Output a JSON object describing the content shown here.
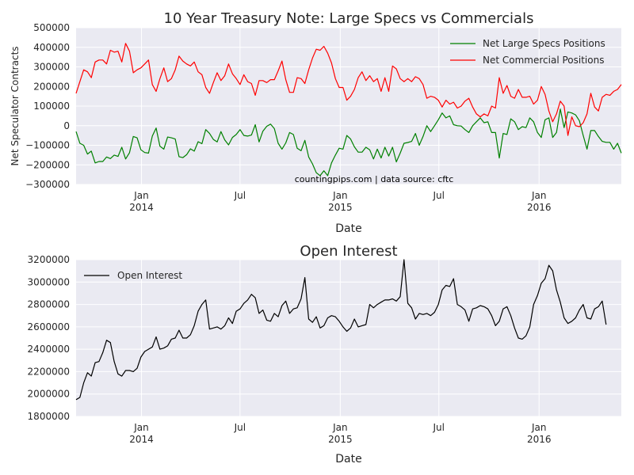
{
  "chart_data": [
    {
      "type": "line",
      "title": "10 Year Treasury Note: Large Specs vs Commercials",
      "xlabel": "Date",
      "ylabel": "Net Speculator Contracts",
      "ylim": [
        -300000,
        500000
      ],
      "y_ticks": [
        500000,
        400000,
        300000,
        200000,
        100000,
        0,
        -100000,
        -200000,
        -300000
      ],
      "y_tick_labels": [
        "500000",
        "400000",
        "300000",
        "200000",
        "100000",
        "0",
        "−100000",
        "−200000",
        "−300000"
      ],
      "x_range": [
        "2013-09-03",
        "2016-05-31"
      ],
      "x_ticks": [
        {
          "date": "2014-01-01",
          "label": "Jan",
          "sublabel": "2014"
        },
        {
          "date": "2014-07-01",
          "label": "Jul",
          "sublabel": ""
        },
        {
          "date": "2015-01-01",
          "label": "Jan",
          "sublabel": "2015"
        },
        {
          "date": "2015-07-01",
          "label": "Jul",
          "sublabel": ""
        },
        {
          "date": "2016-01-01",
          "label": "Jan",
          "sublabel": "2016"
        }
      ],
      "grid": true,
      "legend_position": "top-right",
      "annotation": "countingpips.com | data source: cftc",
      "start_date": "2013-09-03",
      "interval_days": 7,
      "series": [
        {
          "name": "Net Large Specs Positions",
          "color": "#008000",
          "values": [
            -30000,
            -90000,
            -100000,
            -145000,
            -130000,
            -190000,
            -183000,
            -183000,
            -160000,
            -168000,
            -150000,
            -157000,
            -110000,
            -170000,
            -138000,
            -55000,
            -62000,
            -123000,
            -137000,
            -140000,
            -53000,
            -12000,
            -105000,
            -120000,
            -58000,
            -62000,
            -68000,
            -158000,
            -163000,
            -148000,
            -118000,
            -130000,
            -82000,
            -92000,
            -20000,
            -40000,
            -70000,
            -83000,
            -30000,
            -73000,
            -98000,
            -60000,
            -45000,
            -20000,
            -50000,
            -53000,
            -48000,
            5000,
            -83000,
            -28000,
            -3000,
            8000,
            -15000,
            -90000,
            -120000,
            -88000,
            -35000,
            -45000,
            -115000,
            -128000,
            -75000,
            -160000,
            -195000,
            -240000,
            -255000,
            -230000,
            -255000,
            -190000,
            -150000,
            -115000,
            -120000,
            -50000,
            -68000,
            -108000,
            -135000,
            -135000,
            -110000,
            -123000,
            -170000,
            -120000,
            -165000,
            -110000,
            -155000,
            -110000,
            -185000,
            -140000,
            -90000,
            -86000,
            -80000,
            -40000,
            -100000,
            -55000,
            0,
            -30000,
            0,
            30000,
            65000,
            40000,
            50000,
            5000,
            0,
            -2000,
            -20000,
            -35000,
            0,
            20000,
            40000,
            15000,
            20000,
            -35000,
            -35000,
            -165000,
            -40000,
            -45000,
            35000,
            20000,
            -20000,
            -5000,
            -10000,
            40000,
            20000,
            -35000,
            -60000,
            30000,
            40000,
            -60000,
            -35000,
            85000,
            -10000,
            70000,
            65000,
            55000,
            25000,
            -50000,
            -120000,
            -25000,
            -25000,
            -55000,
            -80000,
            -85000,
            -85000,
            -120000,
            -90000,
            -140000
          ]
        },
        {
          "name": "Net Commercial Positions",
          "color": "#ff0000",
          "values": [
            165000,
            225000,
            285000,
            275000,
            245000,
            325000,
            335000,
            335000,
            315000,
            385000,
            375000,
            380000,
            325000,
            420000,
            380000,
            270000,
            285000,
            295000,
            315000,
            335000,
            210000,
            175000,
            240000,
            295000,
            225000,
            240000,
            285000,
            355000,
            330000,
            315000,
            305000,
            325000,
            275000,
            260000,
            195000,
            165000,
            220000,
            270000,
            230000,
            255000,
            315000,
            265000,
            240000,
            210000,
            260000,
            225000,
            215000,
            155000,
            230000,
            230000,
            220000,
            235000,
            235000,
            280000,
            330000,
            235000,
            170000,
            170000,
            245000,
            240000,
            215000,
            285000,
            345000,
            390000,
            385000,
            405000,
            370000,
            320000,
            240000,
            195000,
            195000,
            130000,
            150000,
            185000,
            245000,
            275000,
            230000,
            255000,
            225000,
            240000,
            175000,
            245000,
            175000,
            305000,
            290000,
            240000,
            225000,
            240000,
            225000,
            250000,
            240000,
            210000,
            140000,
            150000,
            145000,
            130000,
            95000,
            130000,
            110000,
            120000,
            90000,
            100000,
            125000,
            140000,
            95000,
            60000,
            45000,
            60000,
            50000,
            100000,
            90000,
            245000,
            165000,
            205000,
            150000,
            140000,
            185000,
            145000,
            145000,
            150000,
            110000,
            130000,
            200000,
            160000,
            75000,
            20000,
            60000,
            125000,
            100000,
            -50000,
            45000,
            0,
            -5000,
            15000,
            60000,
            165000,
            95000,
            75000,
            145000,
            160000,
            155000,
            175000,
            185000,
            210000
          ]
        }
      ]
    },
    {
      "type": "line",
      "title": "Open Interest",
      "xlabel": "Date",
      "ylabel": "",
      "ylim": [
        1800000,
        3200000
      ],
      "y_ticks": [
        3200000,
        3000000,
        2800000,
        2600000,
        2400000,
        2200000,
        2000000,
        1800000
      ],
      "y_tick_labels": [
        "3200000",
        "3000000",
        "2800000",
        "2600000",
        "2400000",
        "2200000",
        "2000000",
        "1800000"
      ],
      "x_range": [
        "2013-09-03",
        "2016-05-31"
      ],
      "x_ticks": [
        {
          "date": "2014-01-01",
          "label": "Jan",
          "sublabel": "2014"
        },
        {
          "date": "2014-07-01",
          "label": "Jul",
          "sublabel": ""
        },
        {
          "date": "2015-01-01",
          "label": "Jan",
          "sublabel": "2015"
        },
        {
          "date": "2015-07-01",
          "label": "Jul",
          "sublabel": ""
        },
        {
          "date": "2016-01-01",
          "label": "Jan",
          "sublabel": "2016"
        }
      ],
      "grid": true,
      "legend_position": "top-left",
      "start_date": "2013-09-03",
      "interval_days": 7,
      "series": [
        {
          "name": "Open Interest",
          "color": "#000000",
          "values": [
            1950000,
            1970000,
            2100000,
            2190000,
            2160000,
            2280000,
            2290000,
            2370000,
            2480000,
            2460000,
            2290000,
            2180000,
            2160000,
            2210000,
            2210000,
            2200000,
            2230000,
            2330000,
            2380000,
            2400000,
            2420000,
            2510000,
            2400000,
            2410000,
            2430000,
            2490000,
            2500000,
            2570000,
            2500000,
            2500000,
            2530000,
            2610000,
            2740000,
            2800000,
            2840000,
            2580000,
            2590000,
            2600000,
            2580000,
            2610000,
            2680000,
            2630000,
            2740000,
            2760000,
            2810000,
            2840000,
            2890000,
            2860000,
            2720000,
            2750000,
            2660000,
            2650000,
            2720000,
            2690000,
            2790000,
            2830000,
            2720000,
            2760000,
            2770000,
            2850000,
            3040000,
            2670000,
            2640000,
            2690000,
            2590000,
            2610000,
            2680000,
            2700000,
            2690000,
            2650000,
            2600000,
            2560000,
            2590000,
            2670000,
            2600000,
            2610000,
            2620000,
            2800000,
            2770000,
            2800000,
            2820000,
            2840000,
            2840000,
            2850000,
            2830000,
            2870000,
            3200000,
            2810000,
            2770000,
            2670000,
            2720000,
            2710000,
            2720000,
            2700000,
            2730000,
            2800000,
            2930000,
            2970000,
            2960000,
            3030000,
            2800000,
            2780000,
            2750000,
            2650000,
            2760000,
            2770000,
            2790000,
            2780000,
            2760000,
            2700000,
            2610000,
            2650000,
            2760000,
            2780000,
            2700000,
            2590000,
            2500000,
            2490000,
            2520000,
            2600000,
            2800000,
            2880000,
            2990000,
            3030000,
            3150000,
            3100000,
            2930000,
            2820000,
            2680000,
            2630000,
            2650000,
            2680000,
            2750000,
            2800000,
            2680000,
            2670000,
            2760000,
            2780000,
            2830000,
            2620000
          ]
        }
      ]
    }
  ]
}
